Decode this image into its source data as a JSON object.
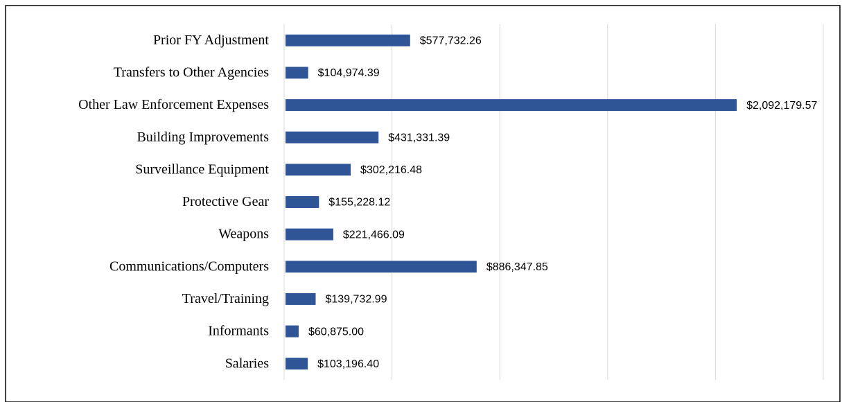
{
  "chart_data": {
    "type": "bar",
    "orientation": "horizontal",
    "categories": [
      "Prior FY Adjustment",
      "Transfers to Other Agencies",
      "Other Law Enforcement Expenses",
      "Building Improvements",
      "Surveillance Equipment",
      "Protective Gear",
      "Weapons",
      "Communications/Computers",
      "Travel/Training",
      "Informants",
      "Salaries"
    ],
    "values": [
      577732.26,
      104974.39,
      2092179.57,
      431331.39,
      302216.48,
      155228.12,
      221466.09,
      886347.85,
      139732.99,
      60875.0,
      103196.4
    ],
    "value_labels": [
      "$577,732.26",
      "$104,974.39",
      "$2,092,179.57",
      "$431,331.39",
      "$302,216.48",
      "$155,228.12",
      "$221,466.09",
      "$886,347.85",
      "$139,732.99",
      "$60,875.00",
      "$103,196.40"
    ],
    "color": "#2f5597",
    "xlim": [
      0,
      2500000
    ],
    "xticks": [
      0,
      500000,
      1000000,
      1500000,
      2000000,
      2500000
    ],
    "grid": true
  }
}
